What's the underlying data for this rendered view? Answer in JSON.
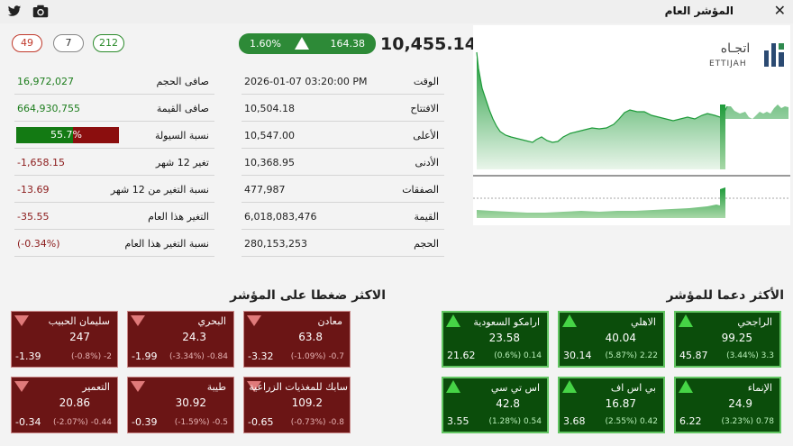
{
  "window": {
    "title": "المؤشر العام"
  },
  "summary": {
    "index_value": "10,455.14",
    "change_points": "164.38",
    "change_pct": "1.60%",
    "counts": {
      "declined": "49",
      "unchanged": "7",
      "advanced": "212"
    }
  },
  "left_stats": [
    {
      "label": "صافى الحجم",
      "value": "16,972,027",
      "tone": "green"
    },
    {
      "label": "صافى القيمة",
      "value": "664,930,755",
      "tone": "green"
    },
    {
      "label": "نسبة السيولة",
      "value": "55.7%",
      "tone": "bar",
      "fraction": 0.557
    },
    {
      "label": "تغير 12 شهر",
      "value": "-1,658.15",
      "tone": "red"
    },
    {
      "label": "نسبة التغير من 12 شهر",
      "value": "-13.69",
      "tone": "red"
    },
    {
      "label": "التغير هذا العام",
      "value": "-35.55",
      "tone": "red"
    },
    {
      "label": "نسبة التغير هذا العام",
      "value": "(-0.34%)",
      "tone": "red"
    }
  ],
  "right_stats": [
    {
      "label": "الوقت",
      "value": "2026-01-07 03:20:00 PM"
    },
    {
      "label": "الافتتاح",
      "value": "10,504.18"
    },
    {
      "label": "الأعلى",
      "value": "10,547.00"
    },
    {
      "label": "الأدنى",
      "value": "10,368.95"
    },
    {
      "label": "الصفقات",
      "value": "477,987"
    },
    {
      "label": "القيمة",
      "value": "6,018,083,476"
    },
    {
      "label": "الحجم",
      "value": "280,153,253"
    }
  ],
  "chart": {
    "logo_ar": "اتجـاه",
    "logo_en": "ETTIJAH",
    "line_color": "#1e9b3a"
  },
  "supporting": {
    "title": "الأكثر دعما للمؤشر",
    "cards": [
      {
        "name": "الراجحي",
        "price": "99.25",
        "change": "45.87",
        "delta": "3.3",
        "pct": "(3.44%)"
      },
      {
        "name": "الاهلي",
        "price": "40.04",
        "change": "30.14",
        "delta": "2.22",
        "pct": "(5.87%)"
      },
      {
        "name": "ارامكو السعودية",
        "price": "23.58",
        "change": "21.62",
        "delta": "0.14",
        "pct": "(0.6%)"
      },
      {
        "name": "الإنماء",
        "price": "24.9",
        "change": "6.22",
        "delta": "0.78",
        "pct": "(3.23%)"
      },
      {
        "name": "بي اس اف",
        "price": "16.87",
        "change": "3.68",
        "delta": "0.42",
        "pct": "(2.55%)"
      },
      {
        "name": "اس تي سي",
        "price": "42.8",
        "change": "3.55",
        "delta": "0.54",
        "pct": "(1.28%)"
      }
    ]
  },
  "pressuring": {
    "title": "الاكثر ضغطا على المؤشر",
    "cards": [
      {
        "name": "معادن",
        "price": "63.8",
        "change": "-3.32",
        "delta": "-0.7",
        "pct": "(-1.09%)"
      },
      {
        "name": "البحري",
        "price": "24.3",
        "change": "-1.99",
        "delta": "-0.84",
        "pct": "(-3.34%)"
      },
      {
        "name": "سليمان الحبيب",
        "price": "247",
        "change": "-1.39",
        "delta": "-2",
        "pct": "(-0.8%)"
      },
      {
        "name": "سابك للمغذيات الزراعية",
        "price": "109.2",
        "change": "-0.65",
        "delta": "-0.8",
        "pct": "(-0.73%)"
      },
      {
        "name": "طيبة",
        "price": "30.92",
        "change": "-0.39",
        "delta": "-0.5",
        "pct": "(-1.59%)"
      },
      {
        "name": "التعمير",
        "price": "20.86",
        "change": "-0.34",
        "delta": "-0.44",
        "pct": "(-2.07%)"
      }
    ]
  }
}
